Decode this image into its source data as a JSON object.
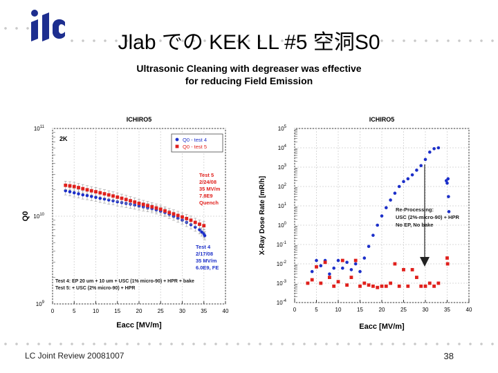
{
  "logo": "ilc",
  "slide": {
    "title": "Jlab での KEK LL #5 空洞S0",
    "subtitle_line1": "Ultrasonic Cleaning with degreaser was effective",
    "subtitle_line2": "for reducing Field Emission",
    "footer": "LC Joint Review 20081007",
    "page_number": "38"
  },
  "chart_data": [
    {
      "type": "scatter",
      "title": "ICHIRO5",
      "xlabel": "Eacc [MV/m]",
      "ylabel": "Q0",
      "xlim": [
        0,
        40
      ],
      "ylim": [
        1000000000.0,
        100000000000.0
      ],
      "log_y": true,
      "x_ticks": [
        "0",
        "5",
        "10",
        "15",
        "20",
        "25",
        "30",
        "35",
        "40"
      ],
      "y_ticks": [
        {
          "base": "10",
          "exp": "11",
          "v": 100000000000.0
        },
        {
          "base": "10",
          "exp": "10",
          "v": 10000000000.0
        },
        {
          "base": "10",
          "exp": "9",
          "v": 1000000000.0
        }
      ],
      "corner_label": "2K",
      "legend_position": "top-right",
      "series": [
        {
          "name": "Q0 - test 4",
          "color": "#1c2fc9",
          "marker": "circle",
          "x": [
            3,
            4,
            5,
            6,
            7,
            8,
            9,
            10,
            11,
            12,
            13,
            14,
            15,
            16,
            17,
            18,
            19,
            20,
            21,
            22,
            23,
            24,
            25,
            26,
            27,
            28,
            29,
            30,
            31,
            32,
            33,
            34,
            34.5,
            35,
            35.2
          ],
          "y": [
            19500000000.0,
            19000000000.0,
            18500000000.0,
            18000000000.0,
            17500000000.0,
            17200000000.0,
            16800000000.0,
            16400000000.0,
            16000000000.0,
            15700000000.0,
            15300000000.0,
            15000000000.0,
            14600000000.0,
            14300000000.0,
            14000000000.0,
            13700000000.0,
            13400000000.0,
            13100000000.0,
            12800000000.0,
            12500000000.0,
            12200000000.0,
            11800000000.0,
            11400000000.0,
            11000000000.0,
            10500000000.0,
            10000000000.0,
            9500000000.0,
            9000000000.0,
            8500000000.0,
            8000000000.0,
            7500000000.0,
            7000000000.0,
            6600000000.0,
            6300000000.0,
            6000000000.0
          ]
        },
        {
          "name": "Q0 - test 5",
          "color": "#e0201c",
          "marker": "square",
          "x": [
            3,
            4,
            5,
            6,
            7,
            8,
            9,
            10,
            11,
            12,
            13,
            14,
            15,
            16,
            17,
            18,
            19,
            20,
            21,
            22,
            23,
            24,
            25,
            26,
            27,
            28,
            29,
            30,
            31,
            32,
            33,
            34,
            35
          ],
          "y": [
            22500000000.0,
            22200000000.0,
            21800000000.0,
            21200000000.0,
            20600000000.0,
            20000000000.0,
            19500000000.0,
            19000000000.0,
            18500000000.0,
            18000000000.0,
            17500000000.0,
            17000000000.0,
            16500000000.0,
            16000000000.0,
            15500000000.0,
            15000000000.0,
            14500000000.0,
            14000000000.0,
            13600000000.0,
            13200000000.0,
            12800000000.0,
            12400000000.0,
            12000000000.0,
            11500000000.0,
            11000000000.0,
            10600000000.0,
            10200000000.0,
            9800000000.0,
            9400000000.0,
            9000000000.0,
            8500000000.0,
            8100000000.0,
            7800000000.0
          ]
        }
      ],
      "annotations": {
        "test5": [
          "Test 5",
          "2/24/08",
          "35 MV/m",
          "7.8E9",
          "Quench"
        ],
        "test4": [
          "Test 4",
          "2/17/08",
          "35 MV/m",
          "6.0E9, FE"
        ],
        "process_notes": [
          "Test 4: EP 20 um + 10 um + USC (1% micro-90) + HPR + bake",
          "Test 5: + USC (2% micro-90) + HPR"
        ]
      }
    },
    {
      "type": "scatter",
      "title": "ICHIRO5",
      "xlabel": "Eacc [MV/m]",
      "ylabel": "X-Ray Dose Rate [mR/h]",
      "xlim": [
        0,
        40
      ],
      "ylim": [
        0.0001,
        100000.0
      ],
      "log_y": true,
      "x_ticks": [
        "0",
        "5",
        "10",
        "15",
        "20",
        "25",
        "30",
        "35",
        "40"
      ],
      "y_ticks": [
        {
          "base": "10",
          "exp": "5",
          "v": 100000.0
        },
        {
          "base": "10",
          "exp": "4",
          "v": 10000.0
        },
        {
          "base": "10",
          "exp": "3",
          "v": 1000.0
        },
        {
          "base": "10",
          "exp": "2",
          "v": 100.0
        },
        {
          "base": "10",
          "exp": "1",
          "v": 10.0
        },
        {
          "base": "10",
          "exp": "0",
          "v": 1.0
        },
        {
          "base": "10",
          "exp": "-1",
          "v": 0.1
        },
        {
          "base": "10",
          "exp": "-2",
          "v": 0.01
        },
        {
          "base": "10",
          "exp": "-3",
          "v": 0.001
        },
        {
          "base": "10",
          "exp": "-4",
          "v": 0.0001
        }
      ],
      "series": [
        {
          "name": "Q0 - test 4",
          "color": "#1c2fc9",
          "marker": "circle",
          "x": [
            4,
            5,
            6,
            7,
            8,
            9,
            10,
            11,
            12,
            13,
            14,
            15,
            16,
            17,
            18,
            19,
            20,
            21,
            22,
            23,
            24,
            25,
            26,
            27,
            28,
            29,
            30,
            31,
            32,
            33,
            34.8,
            35,
            35.2,
            35.3,
            35.4
          ],
          "y": [
            0.004,
            0.015,
            0.008,
            0.015,
            0.003,
            0.006,
            0.015,
            0.006,
            0.012,
            0.005,
            0.01,
            0.004,
            0.02,
            0.08,
            0.3,
            1,
            3,
            8,
            20,
            45,
            100,
            180,
            250,
            400,
            700,
            1200,
            2500,
            6000,
            9000,
            10000.0,
            200,
            150,
            250,
            30,
            5
          ]
        },
        {
          "name": "Q0 - test 5",
          "color": "#e0201c",
          "marker": "square",
          "x": [
            3,
            4,
            5,
            6,
            7,
            8,
            9,
            10,
            11,
            12,
            13,
            14,
            15,
            16,
            17,
            18,
            19,
            20,
            21,
            22,
            23,
            24,
            25,
            26,
            27,
            28,
            29,
            30,
            31,
            32,
            33,
            35,
            35.1
          ],
          "y": [
            0.001,
            0.0015,
            0.007,
            0.001,
            0.012,
            0.002,
            0.0007,
            0.0012,
            0.015,
            0.0008,
            0.002,
            0.015,
            0.0007,
            0.001,
            0.0008,
            0.0007,
            0.0006,
            0.0007,
            0.0007,
            0.001,
            0.01,
            0.0007,
            0.005,
            0.0007,
            0.005,
            0.002,
            0.0007,
            0.0007,
            0.001,
            0.0007,
            0.001,
            0.02,
            0.01
          ]
        }
      ],
      "annotations": {
        "reprocessing": [
          "Re-Processing:",
          "USC (2%-micro-90) + HPR",
          "No EP, No bake"
        ]
      }
    }
  ]
}
